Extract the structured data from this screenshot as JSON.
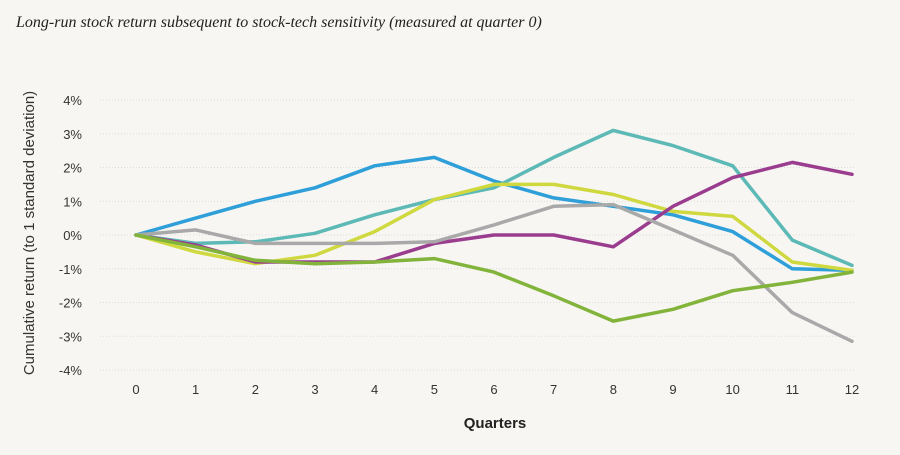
{
  "chart_data": {
    "type": "line",
    "title": "Long-run stock return subsequent to stock-tech sensitivity (measured at quarter 0)",
    "xlabel": "Quarters",
    "ylabel": "Cumulative return (to 1 standard deviation)",
    "x": [
      0,
      1,
      2,
      3,
      4,
      5,
      6,
      7,
      8,
      9,
      10,
      11,
      12
    ],
    "ylim": [
      -4,
      4
    ],
    "yticks": [
      4,
      3,
      2,
      1,
      0,
      -1,
      -2,
      -3,
      -4
    ],
    "ytick_labels": [
      "4%",
      "3%",
      "2%",
      "1%",
      "0%",
      "-1%",
      "-2%",
      "-3%",
      "-4%"
    ],
    "xtick_labels": [
      "0",
      "1",
      "2",
      "3",
      "4",
      "5",
      "6",
      "7",
      "8",
      "9",
      "10",
      "11",
      "12"
    ],
    "grid": true,
    "legend": "none",
    "series": [
      {
        "name": "blue",
        "color": "#2e9fd8",
        "values": [
          0,
          0.5,
          1.0,
          1.4,
          2.05,
          2.3,
          1.6,
          1.1,
          0.85,
          0.6,
          0.1,
          -1.0,
          -1.05
        ]
      },
      {
        "name": "teal",
        "color": "#5cb9b6",
        "values": [
          0,
          -0.25,
          -0.2,
          0.05,
          0.6,
          1.05,
          1.4,
          2.3,
          3.1,
          2.65,
          2.05,
          -0.15,
          -0.9
        ]
      },
      {
        "name": "yellow-green",
        "color": "#cfd93f",
        "values": [
          0,
          -0.5,
          -0.85,
          -0.6,
          0.1,
          1.05,
          1.5,
          1.5,
          1.2,
          0.7,
          0.55,
          -0.8,
          -1.05
        ]
      },
      {
        "name": "purple",
        "color": "#9a3d8f",
        "values": [
          0,
          -0.3,
          -0.8,
          -0.8,
          -0.8,
          -0.25,
          0.0,
          0.0,
          -0.35,
          0.85,
          1.7,
          2.15,
          1.8
        ]
      },
      {
        "name": "gray",
        "color": "#a9a9a9",
        "values": [
          0,
          0.15,
          -0.25,
          -0.25,
          -0.25,
          -0.2,
          0.3,
          0.85,
          0.9,
          0.15,
          -0.6,
          -2.3,
          -3.15
        ]
      },
      {
        "name": "green",
        "color": "#82b33b",
        "values": [
          0,
          -0.35,
          -0.75,
          -0.85,
          -0.8,
          -0.7,
          -1.1,
          -1.8,
          -2.55,
          -2.2,
          -1.65,
          -1.4,
          -1.1
        ]
      }
    ]
  }
}
